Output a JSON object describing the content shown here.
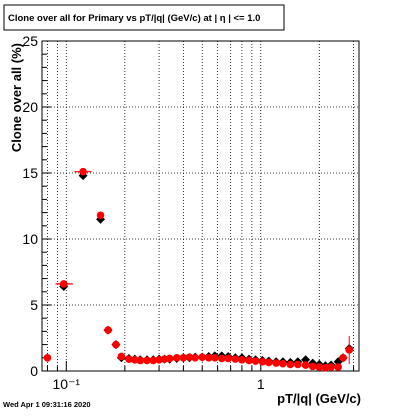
{
  "chart_data": {
    "type": "scatter",
    "title": "Clone  over all for Primary vs pT/|q| (GeV/c) at |  η | <= 1.0",
    "xlabel": "pT/|q| (GeV/c)",
    "ylabel": "Clone  over all (%)",
    "x_scale": "log",
    "xlim": [
      0.075,
      3.2
    ],
    "ylim": [
      0,
      25
    ],
    "grid": true,
    "y_ticks": [
      0,
      5,
      10,
      15,
      20,
      25
    ],
    "y_tick_labels": [
      "0",
      "5",
      "10",
      "15",
      "20",
      "25"
    ],
    "x_ticks": [
      0.1,
      1
    ],
    "x_tick_labels": [
      "10⁻¹",
      "1"
    ],
    "series": [
      {
        "color": "#000000",
        "marker": "diamond",
        "points": [
          [
            0.097,
            6.4
          ],
          [
            0.122,
            14.8
          ],
          [
            0.15,
            11.5
          ],
          [
            0.164,
            3.1
          ],
          [
            0.18,
            2.0
          ],
          [
            0.192,
            1.0
          ],
          [
            0.21,
            0.95
          ],
          [
            0.225,
            0.9
          ],
          [
            0.24,
            0.85
          ],
          [
            0.26,
            0.85
          ],
          [
            0.28,
            0.85
          ],
          [
            0.3,
            0.9
          ],
          [
            0.32,
            0.9
          ],
          [
            0.34,
            0.9
          ],
          [
            0.37,
            0.95
          ],
          [
            0.4,
            1.0
          ],
          [
            0.43,
            1.0
          ],
          [
            0.46,
            1.05
          ],
          [
            0.5,
            1.05
          ],
          [
            0.54,
            1.1
          ],
          [
            0.58,
            1.15
          ],
          [
            0.63,
            1.15
          ],
          [
            0.68,
            1.1
          ],
          [
            0.74,
            1.0
          ],
          [
            0.8,
            1.0
          ],
          [
            0.87,
            0.9
          ],
          [
            0.94,
            0.85
          ],
          [
            1.02,
            0.8
          ],
          [
            1.1,
            0.75
          ],
          [
            1.2,
            0.7
          ],
          [
            1.3,
            0.7
          ],
          [
            1.42,
            0.65
          ],
          [
            1.55,
            0.7
          ],
          [
            1.7,
            0.85
          ],
          [
            1.85,
            0.6
          ],
          [
            2.0,
            0.5
          ],
          [
            2.15,
            0.4
          ],
          [
            2.3,
            0.45
          ],
          [
            2.5,
            0.7
          ],
          [
            2.65,
            1.0
          ],
          [
            2.85,
            1.7
          ]
        ]
      },
      {
        "color": "#ff0000",
        "marker": "circle",
        "points": [
          [
            0.08,
            1.0
          ],
          [
            0.097,
            6.6
          ],
          [
            0.122,
            15.1
          ],
          [
            0.15,
            11.8
          ],
          [
            0.164,
            3.1
          ],
          [
            0.18,
            2.0
          ],
          [
            0.192,
            1.1
          ],
          [
            0.21,
            0.9
          ],
          [
            0.225,
            0.85
          ],
          [
            0.24,
            0.8
          ],
          [
            0.26,
            0.8
          ],
          [
            0.28,
            0.8
          ],
          [
            0.3,
            0.85
          ],
          [
            0.32,
            0.9
          ],
          [
            0.34,
            0.95
          ],
          [
            0.37,
            1.0
          ],
          [
            0.4,
            1.0
          ],
          [
            0.43,
            1.05
          ],
          [
            0.46,
            1.0
          ],
          [
            0.5,
            1.05
          ],
          [
            0.54,
            1.0
          ],
          [
            0.58,
            1.0
          ],
          [
            0.63,
            0.95
          ],
          [
            0.68,
            0.95
          ],
          [
            0.74,
            0.9
          ],
          [
            0.8,
            0.85
          ],
          [
            0.87,
            0.8
          ],
          [
            0.94,
            0.75
          ],
          [
            1.02,
            0.7
          ],
          [
            1.1,
            0.65
          ],
          [
            1.2,
            0.6
          ],
          [
            1.3,
            0.55
          ],
          [
            1.42,
            0.5
          ],
          [
            1.55,
            0.5
          ],
          [
            1.7,
            0.45
          ],
          [
            1.85,
            0.35
          ],
          [
            2.0,
            0.3
          ],
          [
            2.15,
            0.25
          ],
          [
            2.3,
            0.3
          ],
          [
            2.5,
            0.3
          ],
          [
            2.65,
            1.0
          ],
          [
            2.85,
            1.6
          ]
        ],
        "xerr_points": [
          [
            0.097,
            6.6,
            0.088,
            0.108
          ],
          [
            0.122,
            15.1,
            0.11,
            0.135
          ]
        ]
      }
    ]
  },
  "footer": {
    "timestamp": "Wed Apr  1 09:31:16 2020"
  }
}
